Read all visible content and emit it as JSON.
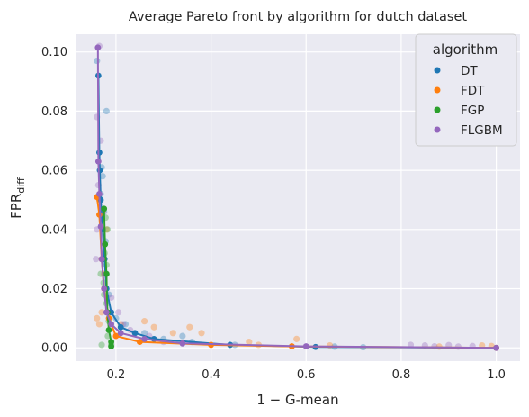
{
  "chart_data": {
    "type": "scatter",
    "title": "Average Pareto front by algorithm for dutch dataset",
    "xlabel": "1 − G-mean",
    "ylabel": "FPR",
    "ylabel_sub": "diff",
    "xlim": [
      0.115,
      1.05
    ],
    "ylim": [
      -0.0045,
      0.106
    ],
    "xticks": [
      0.2,
      0.4,
      0.6,
      0.8,
      1.0
    ],
    "yticks": [
      0.0,
      0.02,
      0.04,
      0.06,
      0.08,
      0.1
    ],
    "grid": true,
    "background": "#eaeaf2",
    "legend": {
      "title": "algorithm",
      "placement": "top-right"
    },
    "series": [
      {
        "name": "DT",
        "color": "#1f77b4",
        "front": [
          [
            0.163,
            0.092
          ],
          [
            0.165,
            0.066
          ],
          [
            0.166,
            0.06
          ],
          [
            0.168,
            0.05
          ],
          [
            0.172,
            0.04
          ],
          [
            0.176,
            0.03
          ],
          [
            0.18,
            0.02
          ],
          [
            0.19,
            0.012
          ],
          [
            0.21,
            0.007
          ],
          [
            0.24,
            0.005
          ],
          [
            0.28,
            0.003
          ],
          [
            0.44,
            0.001
          ],
          [
            0.62,
            0.0003
          ],
          [
            1.0,
            0.0
          ]
        ],
        "scatter": [
          [
            0.17,
            0.061
          ],
          [
            0.172,
            0.058
          ],
          [
            0.168,
            0.052
          ],
          [
            0.175,
            0.046
          ],
          [
            0.178,
            0.036
          ],
          [
            0.172,
            0.03
          ],
          [
            0.185,
            0.018
          ],
          [
            0.2,
            0.01
          ],
          [
            0.22,
            0.008
          ],
          [
            0.26,
            0.005
          ],
          [
            0.3,
            0.003
          ],
          [
            0.34,
            0.004
          ],
          [
            0.36,
            0.002
          ],
          [
            0.45,
            0.001
          ],
          [
            0.66,
            0.0004
          ],
          [
            0.72,
            0.0002
          ],
          [
            0.16,
            0.097
          ],
          [
            0.18,
            0.08
          ]
        ]
      },
      {
        "name": "FDT",
        "color": "#ff7f0e",
        "front": [
          [
            0.16,
            0.051
          ],
          [
            0.165,
            0.045
          ],
          [
            0.17,
            0.03
          ],
          [
            0.175,
            0.02
          ],
          [
            0.185,
            0.01
          ],
          [
            0.2,
            0.004
          ],
          [
            0.25,
            0.002
          ],
          [
            0.4,
            0.001
          ],
          [
            0.57,
            0.0005
          ],
          [
            1.0,
            0.0
          ]
        ],
        "scatter": [
          [
            0.165,
            0.05
          ],
          [
            0.172,
            0.046
          ],
          [
            0.18,
            0.04
          ],
          [
            0.175,
            0.025
          ],
          [
            0.17,
            0.012
          ],
          [
            0.21,
            0.008
          ],
          [
            0.26,
            0.009
          ],
          [
            0.28,
            0.007
          ],
          [
            0.32,
            0.005
          ],
          [
            0.355,
            0.007
          ],
          [
            0.38,
            0.005
          ],
          [
            0.48,
            0.002
          ],
          [
            0.5,
            0.001
          ],
          [
            0.58,
            0.003
          ],
          [
            0.65,
            0.0008
          ],
          [
            0.88,
            0.0004
          ],
          [
            0.97,
            0.0008
          ],
          [
            0.99,
            0.0006
          ],
          [
            0.16,
            0.01
          ],
          [
            0.165,
            0.008
          ]
        ]
      },
      {
        "name": "FGP",
        "color": "#2ca02c",
        "front": [
          [
            0.175,
            0.047
          ],
          [
            0.177,
            0.035
          ],
          [
            0.18,
            0.025
          ],
          [
            0.182,
            0.012
          ],
          [
            0.185,
            0.006
          ],
          [
            0.19,
            0.002
          ],
          [
            0.19,
            0.0005
          ]
        ],
        "scatter": [
          [
            0.178,
            0.044
          ],
          [
            0.182,
            0.04
          ],
          [
            0.176,
            0.032
          ],
          [
            0.18,
            0.028
          ],
          [
            0.174,
            0.022
          ],
          [
            0.18,
            0.015
          ],
          [
            0.185,
            0.009
          ],
          [
            0.183,
            0.004
          ],
          [
            0.19,
            0.001
          ],
          [
            0.17,
            0.001
          ],
          [
            0.175,
            0.018
          ],
          [
            0.168,
            0.025
          ]
        ]
      },
      {
        "name": "FLGBM",
        "color": "#9467bd",
        "front": [
          [
            0.162,
            0.1015
          ],
          [
            0.163,
            0.063
          ],
          [
            0.165,
            0.052
          ],
          [
            0.168,
            0.041
          ],
          [
            0.17,
            0.03
          ],
          [
            0.175,
            0.02
          ],
          [
            0.18,
            0.012
          ],
          [
            0.19,
            0.008
          ],
          [
            0.21,
            0.005
          ],
          [
            0.26,
            0.003
          ],
          [
            0.34,
            0.0015
          ],
          [
            0.6,
            0.0005
          ],
          [
            1.0,
            0.0
          ]
        ],
        "scatter": [
          [
            0.165,
            0.102
          ],
          [
            0.16,
            0.078
          ],
          [
            0.168,
            0.07
          ],
          [
            0.163,
            0.055
          ],
          [
            0.17,
            0.045
          ],
          [
            0.175,
            0.035
          ],
          [
            0.18,
            0.025
          ],
          [
            0.19,
            0.017
          ],
          [
            0.205,
            0.012
          ],
          [
            0.215,
            0.008
          ],
          [
            0.23,
            0.006
          ],
          [
            0.27,
            0.004
          ],
          [
            0.3,
            0.002
          ],
          [
            0.82,
            0.001
          ],
          [
            0.85,
            0.0008
          ],
          [
            0.87,
            0.0005
          ],
          [
            0.9,
            0.0009
          ],
          [
            0.92,
            0.0004
          ],
          [
            0.95,
            0.0006
          ],
          [
            0.16,
            0.04
          ],
          [
            0.158,
            0.03
          ]
        ]
      }
    ]
  }
}
